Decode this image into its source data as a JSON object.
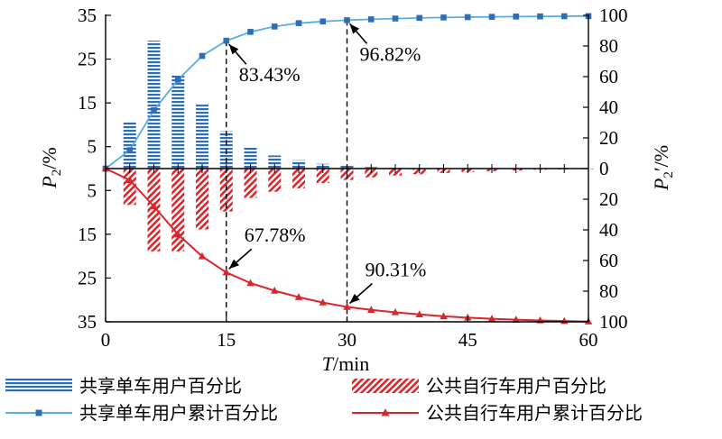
{
  "chart_data": {
    "type": "bar",
    "xlabel_italic": "T",
    "xlabel_unit": "/min",
    "ylabel_left_main": "P",
    "ylabel_left_sub": "2",
    "ylabel_left_unit": "/%",
    "ylabel_right_main": "P",
    "ylabel_right_sub": "2",
    "ylabel_right_unit": "′/%",
    "x_ticks": [
      "0",
      "15",
      "30",
      "45",
      "60"
    ],
    "x_tick_values": [
      0,
      15,
      30,
      45,
      60
    ],
    "xlim": [
      0,
      60
    ],
    "left_ticks_top": [
      "35",
      "25",
      "15",
      "5"
    ],
    "left_ticks_bottom": [
      "5",
      "15",
      "25",
      "35"
    ],
    "left_tick_values_top": [
      35,
      25,
      15,
      5
    ],
    "left_tick_values_bottom": [
      5,
      15,
      25,
      35
    ],
    "left_ylim": [
      0,
      35
    ],
    "right_ticks_top": [
      "100",
      "80",
      "60",
      "40",
      "20",
      "0"
    ],
    "right_ticks_bottom": [
      "20",
      "40",
      "60",
      "80",
      "100"
    ],
    "right_tick_values_top": [
      100,
      80,
      60,
      40,
      20,
      0
    ],
    "right_tick_values_bottom": [
      20,
      40,
      60,
      80,
      100
    ],
    "right_ylim": [
      0,
      100
    ],
    "bar_x": [
      3,
      6,
      9,
      12,
      15,
      18,
      21,
      24,
      27,
      30,
      33,
      36,
      39,
      42,
      45,
      48,
      51,
      54,
      57,
      60
    ],
    "series": [
      {
        "name": "共享单车用户百分比",
        "kind": "bar",
        "direction": "up",
        "color": "#2f6db5",
        "values": [
          10.5,
          29.2,
          21.5,
          14.6,
          8.5,
          5.0,
          3.0,
          1.9,
          1.1,
          0.6,
          0.35,
          0.2,
          0.12,
          0.08,
          0.05,
          0.03,
          0.02,
          0.01,
          0.01,
          0.0
        ]
      },
      {
        "name": "公共自行车用户百分比",
        "kind": "bar",
        "direction": "down",
        "color": "#d9262c",
        "values": [
          8.3,
          18.9,
          18.9,
          13.9,
          9.8,
          6.7,
          5.3,
          4.5,
          3.3,
          2.6,
          2.0,
          1.6,
          1.3,
          1.0,
          0.8,
          0.6,
          0.45,
          0.3,
          0.2,
          0.1
        ]
      },
      {
        "name": "共享单车用户累计百分比",
        "kind": "line",
        "direction": "up",
        "color": "#5aaee6",
        "marker_color": "#2f6db5",
        "x": [
          0,
          3,
          6,
          9,
          12,
          15,
          18,
          21,
          24,
          27,
          30,
          33,
          36,
          39,
          42,
          45,
          48,
          51,
          54,
          57,
          60
        ],
        "values": [
          0,
          12.0,
          38.0,
          58.0,
          73.5,
          83.43,
          89.2,
          92.7,
          94.9,
          96.0,
          96.82,
          97.4,
          97.9,
          98.3,
          98.6,
          98.8,
          99.0,
          99.2,
          99.3,
          99.4,
          99.5
        ]
      },
      {
        "name": "公共自行车用户累计百分比",
        "kind": "line",
        "direction": "down",
        "color": "#d9262c",
        "marker_color": "#d9262c",
        "x": [
          0,
          3,
          6,
          9,
          12,
          15,
          18,
          21,
          24,
          27,
          30,
          33,
          36,
          39,
          42,
          45,
          48,
          51,
          54,
          57,
          60
        ],
        "values": [
          0,
          7.5,
          24.7,
          43.0,
          57.3,
          67.78,
          74.7,
          79.7,
          83.9,
          87.4,
          90.31,
          92.2,
          93.8,
          95.2,
          96.4,
          97.3,
          98.0,
          98.6,
          99.1,
          99.5,
          99.8
        ]
      }
    ],
    "annotations": [
      {
        "text": "83.43%",
        "x": 15,
        "value": 83.43,
        "series": "up"
      },
      {
        "text": "96.82%",
        "x": 30,
        "value": 96.82,
        "series": "up"
      },
      {
        "text": "67.78%",
        "x": 15,
        "value": 67.78,
        "series": "down"
      },
      {
        "text": "90.31%",
        "x": 30,
        "value": 90.31,
        "series": "down"
      }
    ],
    "reference_lines_x": [
      15,
      30
    ],
    "grid": false
  },
  "legend": {
    "items": [
      {
        "label": "共享单车用户百分比",
        "kind": "bar",
        "color": "#2f6db5"
      },
      {
        "label": "公共自行车用户百分比",
        "kind": "bar",
        "color": "#d9262c"
      },
      {
        "label": "共享单车用户累计百分比",
        "kind": "line",
        "color": "#5aaee6",
        "marker_color": "#2f6db5"
      },
      {
        "label": "公共自行车用户累计百分比",
        "kind": "line",
        "color": "#d9262c",
        "marker_color": "#d9262c"
      }
    ]
  }
}
